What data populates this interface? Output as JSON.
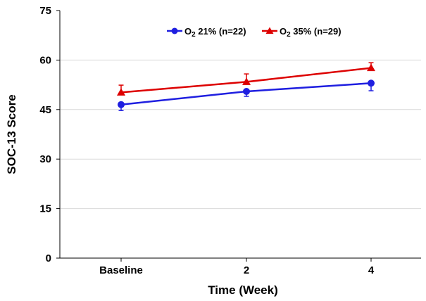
{
  "chart_data": {
    "type": "line",
    "categories": [
      "Baseline",
      "2",
      "4"
    ],
    "xlabel": "Time (Week)",
    "ylabel": "SOC-13 Score",
    "ylim": [
      0,
      75
    ],
    "yticks": [
      0,
      15,
      30,
      45,
      60,
      75
    ],
    "grid": true,
    "legend_position": "top-right",
    "series": [
      {
        "name_main": "O",
        "name_sub": "2",
        "name_rest": " 21% (n=22)",
        "color": "#1f1fe0",
        "marker": "circle",
        "values": [
          46.5,
          50.5,
          53.0
        ],
        "error": [
          1.8,
          1.5,
          2.3
        ],
        "error_direction": "down"
      },
      {
        "name_main": "O",
        "name_sub": "2",
        "name_rest": " 35% (n=29)",
        "color": "#dd0000",
        "marker": "triangle",
        "values": [
          50.2,
          53.4,
          57.6
        ],
        "error": [
          2.2,
          2.4,
          1.6
        ],
        "error_direction": "up"
      }
    ]
  }
}
